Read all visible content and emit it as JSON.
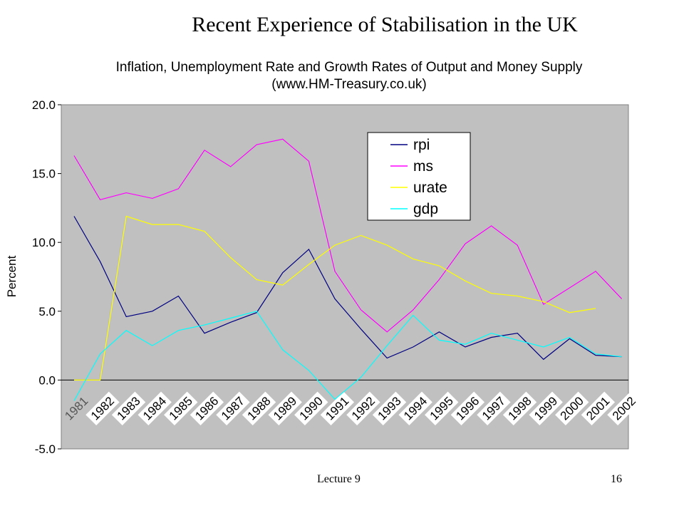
{
  "slide": {
    "title": "Recent Experience of Stabilisation in the UK",
    "footer_left": "Lecture 9",
    "footer_right": "16"
  },
  "chart_data": {
    "type": "line",
    "title": "Inflation, Unemployment Rate and Growth Rates of Output and Money Supply",
    "subtitle": "(www.HM-Treasury.co.uk)",
    "ylabel": "Percent",
    "xlabel": "",
    "ylim": [
      -5,
      20
    ],
    "yticks": [
      "20.0",
      "15.0",
      "10.0",
      "5.0",
      "0.0",
      "-5.0"
    ],
    "categories": [
      "1981",
      "1982",
      "1983",
      "1984",
      "1985",
      "1986",
      "1987",
      "1988",
      "1989",
      "1990",
      "1991",
      "1992",
      "1993",
      "1994",
      "1995",
      "1996",
      "1997",
      "1998",
      "1999",
      "2000",
      "2001",
      "2002"
    ],
    "grid": false,
    "legend_position": "top-center",
    "plot_background": "#c0c0c0",
    "series": [
      {
        "name": "rpi",
        "color": "#000080",
        "values": [
          11.9,
          8.6,
          4.6,
          5.0,
          6.1,
          3.4,
          4.2,
          4.9,
          7.8,
          9.5,
          5.9,
          3.7,
          1.6,
          2.4,
          3.5,
          2.4,
          3.1,
          3.4,
          1.5,
          3.0,
          1.8,
          1.7
        ]
      },
      {
        "name": "ms",
        "color": "#ff00ff",
        "values": [
          16.3,
          13.1,
          13.6,
          13.2,
          13.9,
          16.7,
          15.5,
          17.1,
          17.5,
          15.9,
          7.9,
          5.1,
          3.5,
          5.1,
          7.3,
          9.9,
          11.2,
          9.8,
          5.5,
          6.7,
          7.9,
          5.9
        ]
      },
      {
        "name": "urate",
        "color": "#ffff00",
        "values": [
          0.0,
          0.0,
          11.9,
          11.3,
          11.3,
          10.8,
          8.9,
          7.3,
          6.9,
          8.4,
          9.8,
          10.5,
          9.8,
          8.8,
          8.3,
          7.2,
          6.3,
          6.1,
          5.7,
          4.9,
          5.2,
          null
        ]
      },
      {
        "name": "gdp",
        "color": "#00ffff",
        "values": [
          -1.5,
          1.9,
          3.6,
          2.5,
          3.6,
          4.0,
          4.5,
          5.0,
          2.2,
          0.7,
          -1.4,
          0.2,
          2.5,
          4.7,
          2.9,
          2.6,
          3.4,
          2.9,
          2.4,
          3.1,
          1.9,
          1.7
        ]
      }
    ]
  }
}
